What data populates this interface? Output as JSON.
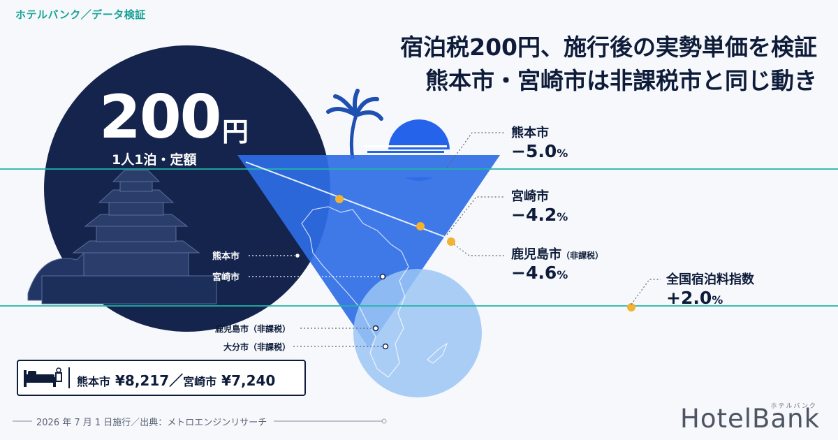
{
  "brand_tag": "ホテルバンク／データ検証",
  "headline": {
    "line1": "宿泊税200円、施行後の実勢単価を検証",
    "line2": "熊本市・宮崎市は非課税市と同じ動き"
  },
  "tax": {
    "amount": "200",
    "unit": "円",
    "subtitle": "1人1泊・定額"
  },
  "map_labels": {
    "kumamoto": "熊本市",
    "miyazaki": "宮崎市",
    "kagoshima": "鹿児島市（非課税）",
    "oita": "大分市（非課税）"
  },
  "results": [
    {
      "name": "熊本市",
      "note": "",
      "value": "−5.0",
      "unit": "%"
    },
    {
      "name": "宮崎市",
      "note": "",
      "value": "−4.2",
      "unit": "%"
    },
    {
      "name": "鹿児島市",
      "note": "（非課税）",
      "value": "−4.6",
      "unit": "%"
    },
    {
      "name": "全国宿泊料指数",
      "note": "",
      "value": "+2.0",
      "unit": "%"
    }
  ],
  "prices": {
    "city1": "熊本市",
    "price1": "¥8,217",
    "separator": "／",
    "city2": "宮崎市",
    "price2": "¥7,240"
  },
  "footer": "2026 年 7 月 1 日施行／出典：メトロエンジンリサーチ",
  "logo": {
    "text": "HotelBank",
    "kana": "ホテルバンク"
  },
  "colors": {
    "navy": "#0e1c3a",
    "accent_teal": "#17a398",
    "blue": "#2563eb",
    "light_blue": "#9cc6f5",
    "marker": "#f2b233"
  }
}
